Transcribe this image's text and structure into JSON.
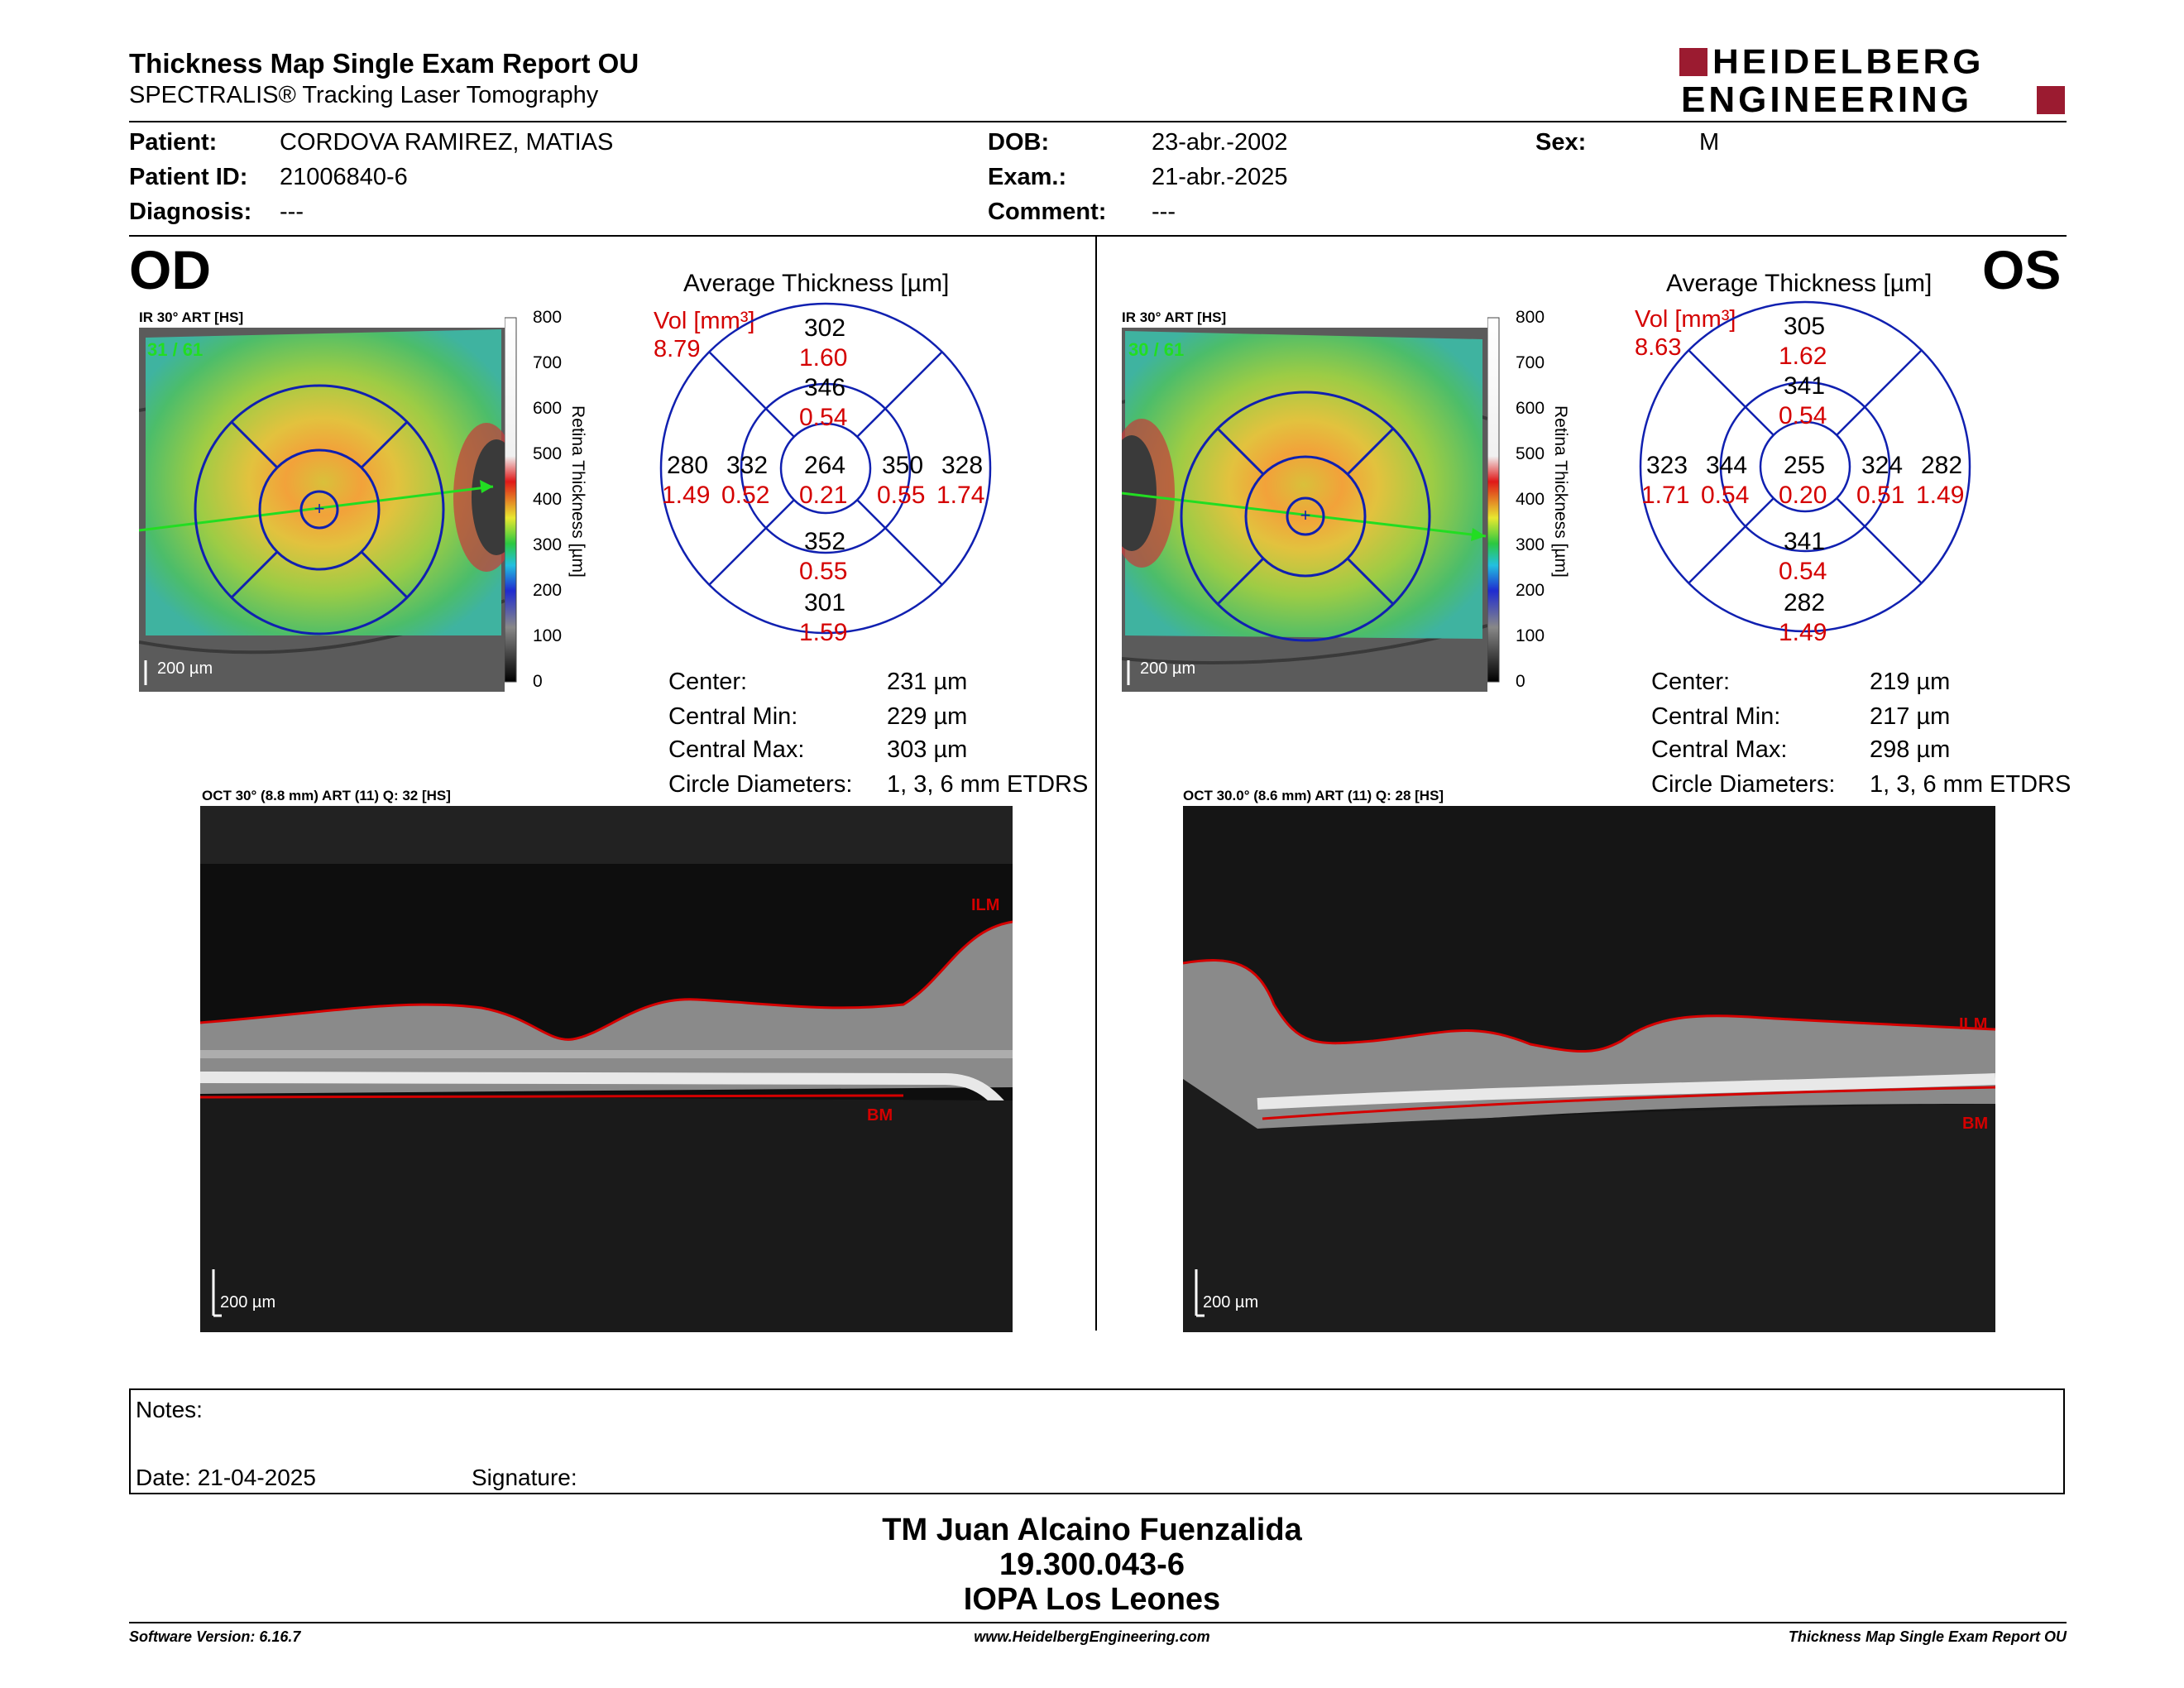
{
  "header": {
    "title": "Thickness Map Single Exam Report OU",
    "subtitle": "SPECTRALIS® Tracking Laser Tomography",
    "logo_line1": "HEIDELBERG",
    "logo_line2": "ENGINEERING"
  },
  "patient": {
    "patient_label": "Patient:",
    "patient_value": "CORDOVA RAMIREZ, MATIAS",
    "id_label": "Patient ID:",
    "id_value": "21006840-6",
    "diagnosis_label": "Diagnosis:",
    "diagnosis_value": "---",
    "dob_label": "DOB:",
    "dob_value": "23-abr.-2002",
    "exam_label": "Exam.:",
    "exam_value": "21-abr.-2025",
    "comment_label": "Comment:",
    "comment_value": "---",
    "sex_label": "Sex:",
    "sex_value": "M"
  },
  "scale_bar": {
    "title": "Retina  Thickness [µm]",
    "ticks": [
      "800",
      "700",
      "600",
      "500",
      "400",
      "300",
      "200",
      "100",
      "0"
    ]
  },
  "od": {
    "eye": "OD",
    "ir_label": "IR 30° ART [HS]",
    "ir_count": "31 / 61",
    "ir_scale": "200 µm",
    "avg_title": "Average Thickness [µm]",
    "vol_label": "Vol [mm³]",
    "vol_total": "8.79",
    "grid": {
      "center": {
        "t": "264",
        "v": "0.21"
      },
      "inner_top": {
        "t": "346",
        "v": "0.54"
      },
      "inner_bottom": {
        "t": "352",
        "v": "0.55"
      },
      "inner_left": {
        "t": "332",
        "v": "0.52"
      },
      "inner_right": {
        "t": "350",
        "v": "0.55"
      },
      "outer_top": {
        "t": "302",
        "v": "1.60"
      },
      "outer_bottom": {
        "t": "301",
        "v": "1.59"
      },
      "outer_left": {
        "t": "280",
        "v": "1.49"
      },
      "outer_right": {
        "t": "328",
        "v": "1.74"
      }
    },
    "stats": [
      {
        "label": "Center:",
        "value": "231 µm"
      },
      {
        "label": "Central Min:",
        "value": "229 µm"
      },
      {
        "label": "Central Max:",
        "value": "303 µm"
      },
      {
        "label": "Circle Diameters:",
        "value": "1, 3, 6 mm ETDRS"
      }
    ],
    "oct_label": "OCT 30° (8.8 mm) ART (11) Q: 32 [HS]",
    "oct_scale": "200 µm",
    "ilm": "ILM",
    "bm": "BM"
  },
  "os": {
    "eye": "OS",
    "ir_label": "IR 30° ART [HS]",
    "ir_count": "30 / 61",
    "ir_scale": "200 µm",
    "avg_title": "Average Thickness [µm]",
    "vol_label": "Vol [mm³]",
    "vol_total": "8.63",
    "grid": {
      "center": {
        "t": "255",
        "v": "0.20"
      },
      "inner_top": {
        "t": "341",
        "v": "0.54"
      },
      "inner_bottom": {
        "t": "341",
        "v": "0.54"
      },
      "inner_left": {
        "t": "344",
        "v": "0.54"
      },
      "inner_right": {
        "t": "324",
        "v": "0.51"
      },
      "outer_top": {
        "t": "305",
        "v": "1.62"
      },
      "outer_bottom": {
        "t": "282",
        "v": "1.49"
      },
      "outer_left": {
        "t": "323",
        "v": "1.71"
      },
      "outer_right": {
        "t": "282",
        "v": "1.49"
      }
    },
    "stats": [
      {
        "label": "Center:",
        "value": "219 µm"
      },
      {
        "label": "Central Min:",
        "value": "217 µm"
      },
      {
        "label": "Central Max:",
        "value": "298 µm"
      },
      {
        "label": "Circle Diameters:",
        "value": "1, 3, 6 mm ETDRS"
      }
    ],
    "oct_label": "OCT 30.0° (8.6 mm) ART (11) Q: 28 [HS]",
    "oct_scale": "200 µm",
    "ilm": "ILM",
    "bm": "BM"
  },
  "notes": {
    "notes_label": "Notes:",
    "date_label": "Date: 21-04-2025",
    "signature_label": "Signature:"
  },
  "signer": {
    "name": "TM Juan Alcaino Fuenzalida",
    "id": "19.300.043-6",
    "clinic": "IOPA Los Leones"
  },
  "footer": {
    "software": "Software Version: 6.16.7",
    "website": "www.HeidelbergEngineering.com",
    "report": "Thickness Map Single Exam Report OU"
  },
  "colors": {
    "accent_red": "#d40000",
    "logo_red": "#9b1b30",
    "grid_blue": "#1020b0",
    "bg": "#ffffff"
  }
}
